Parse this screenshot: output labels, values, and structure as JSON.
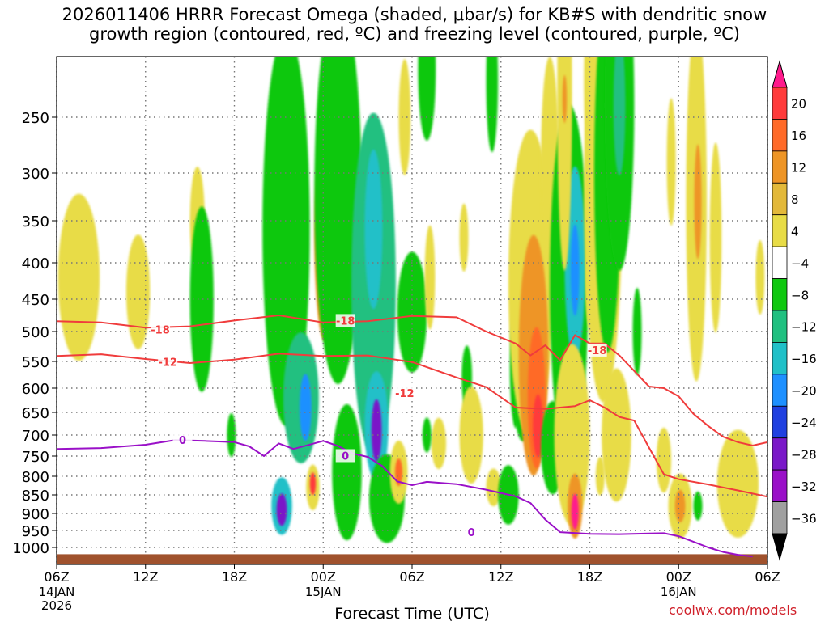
{
  "header": {
    "title_line1": "2026011406 HRRR Forecast Omega (shaded, μbar/s) for KB#S with dendritic snow",
    "title_line2": "growth region (contoured, red, ºC) and freezing level (contoured, purple, ºC)"
  },
  "footer": {
    "credit": "coolwx.com/models"
  },
  "chart_data": {
    "type": "heatmap",
    "xlabel": "Forecast Time (UTC)",
    "x_ticks": [
      {
        "hour": 0,
        "label": "06Z",
        "sub1": "14JAN",
        "sub2": "2026"
      },
      {
        "hour": 6,
        "label": "12Z",
        "sub1": "",
        "sub2": ""
      },
      {
        "hour": 12,
        "label": "18Z",
        "sub1": "",
        "sub2": ""
      },
      {
        "hour": 18,
        "label": "00Z",
        "sub1": "15JAN",
        "sub2": ""
      },
      {
        "hour": 24,
        "label": "06Z",
        "sub1": "",
        "sub2": ""
      },
      {
        "hour": 30,
        "label": "12Z",
        "sub1": "",
        "sub2": ""
      },
      {
        "hour": 36,
        "label": "18Z",
        "sub1": "",
        "sub2": ""
      },
      {
        "hour": 42,
        "label": "00Z",
        "sub1": "16JAN",
        "sub2": ""
      },
      {
        "hour": 48,
        "label": "06Z",
        "sub1": "",
        "sub2": ""
      }
    ],
    "x_range": [
      0,
      48
    ],
    "y_axis": "pressure (hPa), decreasing upward",
    "y_range": [
      1030,
      200
    ],
    "y_ticks": [
      250,
      300,
      350,
      400,
      450,
      500,
      550,
      600,
      650,
      700,
      750,
      800,
      850,
      900,
      950,
      1000
    ],
    "grid": true,
    "colorbar": {
      "labels": [
        "20",
        "16",
        "12",
        "8",
        "4",
        "−4",
        "−8",
        "−12",
        "−16",
        "−20",
        "−24",
        "−28",
        "−32",
        "−36"
      ],
      "colors": [
        "#ff1a8c",
        "#ff3b3b",
        "#ff6a28",
        "#ee9526",
        "#e3b93a",
        "#e8dc46",
        "#ffffff",
        "#10c810",
        "#20c080",
        "#20c0c8",
        "#1e90ff",
        "#2040e0",
        "#7a18c8",
        "#9a10c8",
        "#a0a0a0",
        "#000000"
      ]
    },
    "omega_cells": [
      {
        "t": 1.5,
        "p": 420,
        "dt": 1.4,
        "dp": 110,
        "v": 5
      },
      {
        "t": 5.5,
        "p": 440,
        "dt": 0.8,
        "dp": 80,
        "v": 5
      },
      {
        "t": 9.5,
        "p": 350,
        "dt": 0.5,
        "dp": 60,
        "v": 5
      },
      {
        "t": 9.8,
        "p": 450,
        "dt": 0.8,
        "dp": 130,
        "v": -6
      },
      {
        "t": 11.8,
        "p": 700,
        "dt": 0.3,
        "dp": 50,
        "v": -6
      },
      {
        "t": 15.5,
        "p": 360,
        "dt": 1.6,
        "dp": 220,
        "v": -6
      },
      {
        "t": 16.5,
        "p": 620,
        "dt": 1.2,
        "dp": 130,
        "v": -8
      },
      {
        "t": 16.8,
        "p": 640,
        "dt": 0.4,
        "dp": 70,
        "v": -18
      },
      {
        "t": 15.2,
        "p": 880,
        "dt": 0.7,
        "dp": 80,
        "v": -12
      },
      {
        "t": 15.2,
        "p": 890,
        "dt": 0.35,
        "dp": 45,
        "v": -26
      },
      {
        "t": 17.3,
        "p": 830,
        "dt": 0.45,
        "dp": 60,
        "v": 6
      },
      {
        "t": 17.3,
        "p": 820,
        "dt": 0.2,
        "dp": 30,
        "v": 17
      },
      {
        "t": 18.1,
        "p": 370,
        "dt": 0.7,
        "dp": 120,
        "v": 9
      },
      {
        "t": 17.9,
        "p": 380,
        "dt": 0.25,
        "dp": 40,
        "v": 13
      },
      {
        "t": 19.0,
        "p": 320,
        "dt": 1.6,
        "dp": 200,
        "v": -6
      },
      {
        "t": 19.6,
        "p": 790,
        "dt": 1.0,
        "dp": 170,
        "v": -6
      },
      {
        "t": 21.4,
        "p": 430,
        "dt": 1.5,
        "dp": 220,
        "v": -8
      },
      {
        "t": 21.4,
        "p": 360,
        "dt": 0.6,
        "dp": 90,
        "v": -13
      },
      {
        "t": 21.6,
        "p": 680,
        "dt": 0.8,
        "dp": 120,
        "v": -15
      },
      {
        "t": 21.6,
        "p": 690,
        "dt": 0.35,
        "dp": 70,
        "v": -24
      },
      {
        "t": 22.3,
        "p": 860,
        "dt": 1.2,
        "dp": 120,
        "v": -6
      },
      {
        "t": 23.1,
        "p": 790,
        "dt": 0.6,
        "dp": 80,
        "v": 6
      },
      {
        "t": 23.1,
        "p": 790,
        "dt": 0.25,
        "dp": 35,
        "v": 15
      },
      {
        "t": 23.5,
        "p": 250,
        "dt": 0.4,
        "dp": 50,
        "v": 5
      },
      {
        "t": 24.0,
        "p": 470,
        "dt": 1.0,
        "dp": 90,
        "v": -6
      },
      {
        "t": 25.0,
        "p": 210,
        "dt": 0.6,
        "dp": 60,
        "v": -6
      },
      {
        "t": 25.2,
        "p": 420,
        "dt": 0.35,
        "dp": 70,
        "v": 5
      },
      {
        "t": 25.8,
        "p": 720,
        "dt": 0.5,
        "dp": 60,
        "v": 5
      },
      {
        "t": 25.0,
        "p": 700,
        "dt": 0.3,
        "dp": 40,
        "v": -6
      },
      {
        "t": 27.5,
        "p": 370,
        "dt": 0.3,
        "dp": 40,
        "v": 5
      },
      {
        "t": 27.7,
        "p": 580,
        "dt": 0.35,
        "dp": 60,
        "v": -6
      },
      {
        "t": 28.0,
        "p": 700,
        "dt": 0.8,
        "dp": 110,
        "v": 5
      },
      {
        "t": 29.5,
        "p": 830,
        "dt": 0.5,
        "dp": 50,
        "v": 5
      },
      {
        "t": 30.5,
        "p": 850,
        "dt": 0.7,
        "dp": 80,
        "v": -6
      },
      {
        "t": 31.0,
        "p": 560,
        "dt": 0.4,
        "dp": 110,
        "v": -6
      },
      {
        "t": 31.5,
        "p": 630,
        "dt": 0.6,
        "dp": 80,
        "v": -6
      },
      {
        "t": 29.4,
        "p": 220,
        "dt": 0.4,
        "dp": 60,
        "v": -6
      },
      {
        "t": 32.0,
        "p": 430,
        "dt": 1.5,
        "dp": 200,
        "v": 5
      },
      {
        "t": 32.2,
        "p": 540,
        "dt": 1.0,
        "dp": 200,
        "v": 9
      },
      {
        "t": 32.4,
        "p": 620,
        "dt": 0.6,
        "dp": 140,
        "v": 13
      },
      {
        "t": 32.5,
        "p": 680,
        "dt": 0.35,
        "dp": 70,
        "v": 17
      },
      {
        "t": 33.3,
        "p": 290,
        "dt": 0.6,
        "dp": 100,
        "v": 5
      },
      {
        "t": 33.5,
        "p": 730,
        "dt": 0.8,
        "dp": 110,
        "v": -6
      },
      {
        "t": 34.6,
        "p": 430,
        "dt": 1.3,
        "dp": 230,
        "v": -6
      },
      {
        "t": 35.0,
        "p": 400,
        "dt": 0.7,
        "dp": 120,
        "v": -14
      },
      {
        "t": 35.0,
        "p": 410,
        "dt": 0.3,
        "dp": 60,
        "v": -18
      },
      {
        "t": 34.8,
        "p": 700,
        "dt": 1.2,
        "dp": 200,
        "v": 5
      },
      {
        "t": 35.0,
        "p": 880,
        "dt": 0.5,
        "dp": 90,
        "v": 10
      },
      {
        "t": 35.0,
        "p": 895,
        "dt": 0.25,
        "dp": 50,
        "v": 20
      },
      {
        "t": 34.3,
        "p": 230,
        "dt": 0.5,
        "dp": 160,
        "v": 5
      },
      {
        "t": 34.3,
        "p": 235,
        "dt": 0.15,
        "dp": 20,
        "v": 10
      },
      {
        "t": 36.3,
        "p": 220,
        "dt": 0.7,
        "dp": 90,
        "v": 5
      },
      {
        "t": 36.9,
        "p": 320,
        "dt": 1.3,
        "dp": 220,
        "v": 5
      },
      {
        "t": 37.2,
        "p": 300,
        "dt": 0.9,
        "dp": 180,
        "v": -6
      },
      {
        "t": 38.0,
        "p": 240,
        "dt": 1.0,
        "dp": 150,
        "v": -6
      },
      {
        "t": 38.0,
        "p": 240,
        "dt": 0.4,
        "dp": 60,
        "v": -10
      },
      {
        "t": 36.0,
        "p": 430,
        "dt": 0.3,
        "dp": 60,
        "v": 5
      },
      {
        "t": 36.7,
        "p": 800,
        "dt": 0.3,
        "dp": 50,
        "v": 5
      },
      {
        "t": 37.8,
        "p": 700,
        "dt": 1.0,
        "dp": 150,
        "v": 5
      },
      {
        "t": 39.2,
        "p": 500,
        "dt": 0.3,
        "dp": 70,
        "v": -6
      },
      {
        "t": 41.0,
        "p": 760,
        "dt": 0.5,
        "dp": 80,
        "v": 5
      },
      {
        "t": 42.1,
        "p": 880,
        "dt": 0.8,
        "dp": 90,
        "v": 5
      },
      {
        "t": 42.1,
        "p": 880,
        "dt": 0.35,
        "dp": 45,
        "v": 9
      },
      {
        "t": 43.3,
        "p": 880,
        "dt": 0.3,
        "dp": 40,
        "v": -6
      },
      {
        "t": 43.2,
        "p": 330,
        "dt": 0.7,
        "dp": 190,
        "v": 5
      },
      {
        "t": 43.3,
        "p": 330,
        "dt": 0.25,
        "dp": 60,
        "v": 9
      },
      {
        "t": 44.5,
        "p": 370,
        "dt": 0.4,
        "dp": 110,
        "v": 5
      },
      {
        "t": 46.0,
        "p": 820,
        "dt": 1.4,
        "dp": 140,
        "v": 5
      },
      {
        "t": 47.5,
        "p": 420,
        "dt": 0.3,
        "dp": 50,
        "v": 5
      },
      {
        "t": 41.5,
        "p": 290,
        "dt": 0.3,
        "dp": 60,
        "v": 5
      }
    ],
    "contours": [
      {
        "label": "-18",
        "color": "#f03c3c",
        "label_at": [
          [
            7,
            497
          ],
          [
            19.5,
            483
          ],
          [
            36.5,
            531
          ]
        ],
        "points": [
          [
            0,
            484
          ],
          [
            3,
            486
          ],
          [
            6,
            494
          ],
          [
            9,
            492
          ],
          [
            12,
            483
          ],
          [
            15,
            475
          ],
          [
            18,
            486
          ],
          [
            21,
            484
          ],
          [
            24,
            476
          ],
          [
            27,
            478
          ],
          [
            29,
            500
          ],
          [
            31,
            520
          ],
          [
            32,
            540
          ],
          [
            33,
            523
          ],
          [
            34,
            548
          ],
          [
            35,
            506
          ],
          [
            36,
            520
          ],
          [
            37,
            520
          ],
          [
            38,
            540
          ],
          [
            40,
            597
          ],
          [
            41,
            600
          ],
          [
            42,
            617
          ],
          [
            43,
            653
          ],
          [
            44,
            680
          ],
          [
            45,
            704
          ],
          [
            46,
            717
          ],
          [
            47,
            725
          ],
          [
            48,
            717
          ]
        ]
      },
      {
        "label": "-12",
        "color": "#f03c3c",
        "label_at": [
          [
            7.5,
            551
          ],
          [
            23.5,
            610
          ]
        ],
        "points": [
          [
            0,
            541
          ],
          [
            3,
            538
          ],
          [
            6,
            546
          ],
          [
            9,
            553
          ],
          [
            12,
            547
          ],
          [
            15,
            537
          ],
          [
            18,
            541
          ],
          [
            21,
            540
          ],
          [
            24,
            551
          ],
          [
            27,
            580
          ],
          [
            29,
            598
          ],
          [
            31,
            640
          ],
          [
            33,
            643
          ],
          [
            35,
            637
          ],
          [
            36,
            625
          ],
          [
            37,
            640
          ],
          [
            38,
            660
          ],
          [
            39,
            668
          ],
          [
            40,
            730
          ],
          [
            41,
            795
          ],
          [
            42,
            808
          ],
          [
            44,
            822
          ],
          [
            46,
            838
          ],
          [
            48,
            855
          ]
        ]
      },
      {
        "label": "0",
        "color": "#9a10c8",
        "label_at": [
          [
            8.5,
            712
          ],
          [
            19.5,
            749
          ],
          [
            28.0,
            955
          ]
        ],
        "points": [
          [
            0,
            733
          ],
          [
            3,
            731
          ],
          [
            6,
            723
          ],
          [
            8,
            712
          ],
          [
            10,
            714
          ],
          [
            12,
            717
          ],
          [
            13,
            727
          ],
          [
            14,
            750
          ],
          [
            15,
            720
          ],
          [
            16,
            733
          ],
          [
            18,
            714
          ],
          [
            19,
            726
          ],
          [
            20,
            744
          ],
          [
            21,
            752
          ],
          [
            22,
            775
          ],
          [
            23,
            814
          ],
          [
            24,
            824
          ],
          [
            25,
            815
          ],
          [
            27,
            821
          ],
          [
            29,
            836
          ],
          [
            31,
            854
          ],
          [
            32,
            872
          ],
          [
            33,
            918
          ],
          [
            34,
            955
          ],
          [
            36,
            960
          ],
          [
            38,
            961
          ],
          [
            40,
            959
          ],
          [
            41,
            958
          ],
          [
            42,
            967
          ],
          [
            43,
            983
          ],
          [
            44,
            1000
          ],
          [
            45,
            1008
          ],
          [
            46,
            1013
          ],
          [
            47,
            1016
          ]
        ]
      }
    ],
    "terrain_top_hpa": 1012
  }
}
